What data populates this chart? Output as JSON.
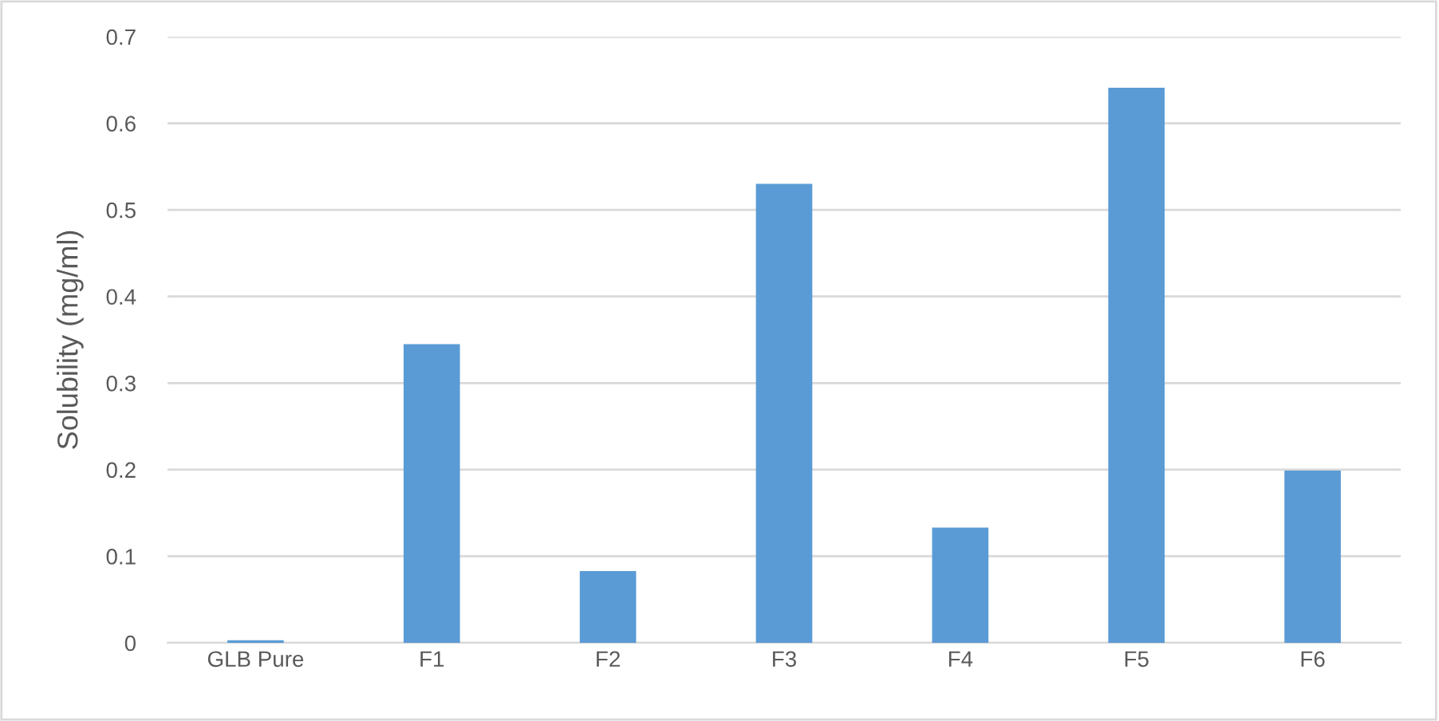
{
  "chart_data": {
    "type": "bar",
    "ylabel": "Solubility (mg/ml)",
    "categories": [
      "GLB Pure",
      "F1",
      "F2",
      "F3",
      "F4",
      "F5",
      "F6"
    ],
    "values": [
      0.003,
      0.345,
      0.083,
      0.53,
      0.133,
      0.641,
      0.199
    ],
    "color": "#5b9bd5",
    "ylim": [
      0,
      0.7
    ],
    "yticks": [
      0,
      0.1,
      0.2,
      0.3,
      0.4,
      0.5,
      0.6,
      0.7
    ],
    "grid": "y"
  }
}
